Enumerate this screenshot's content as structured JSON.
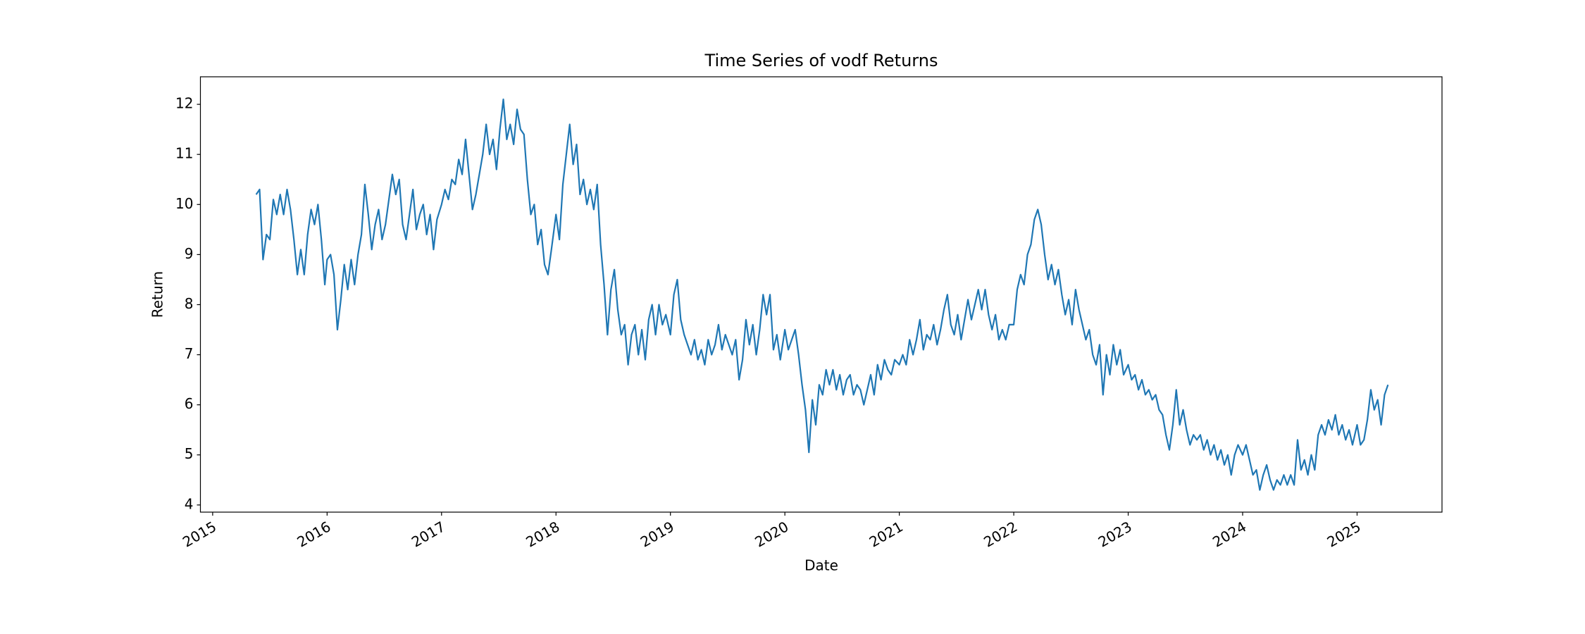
{
  "chart_data": {
    "type": "line",
    "title": "Time Series of vodf Returns",
    "xlabel": "Date",
    "ylabel": "Return",
    "color": "#1f77b4",
    "grid": false,
    "xlim": [
      2014.893,
      2025.742
    ],
    "xticks": [
      2015,
      2016,
      2017,
      2018,
      2019,
      2020,
      2021,
      2022,
      2023,
      2024,
      2025
    ],
    "ylim": [
      3.857,
      12.55
    ],
    "yticks": [
      4,
      5,
      6,
      7,
      8,
      9,
      10,
      11,
      12
    ],
    "x": [
      2015.38,
      2015.41,
      2015.44,
      2015.47,
      2015.5,
      2015.53,
      2015.56,
      2015.59,
      2015.62,
      2015.65,
      2015.68,
      2015.71,
      2015.74,
      2015.77,
      2015.8,
      2015.83,
      2015.86,
      2015.89,
      2015.92,
      2015.95,
      2015.98,
      2016,
      2016.03,
      2016.06,
      2016.09,
      2016.12,
      2016.15,
      2016.18,
      2016.21,
      2016.24,
      2016.27,
      2016.3,
      2016.33,
      2016.36,
      2016.39,
      2016.42,
      2016.45,
      2016.48,
      2016.51,
      2016.54,
      2016.57,
      2016.6,
      2016.63,
      2016.66,
      2016.69,
      2016.72,
      2016.75,
      2016.78,
      2016.81,
      2016.84,
      2016.87,
      2016.9,
      2016.93,
      2016.96,
      2017,
      2017.03,
      2017.06,
      2017.09,
      2017.12,
      2017.15,
      2017.18,
      2017.21,
      2017.24,
      2017.27,
      2017.3,
      2017.33,
      2017.36,
      2017.39,
      2017.42,
      2017.45,
      2017.48,
      2017.51,
      2017.54,
      2017.57,
      2017.6,
      2017.63,
      2017.66,
      2017.69,
      2017.72,
      2017.75,
      2017.78,
      2017.81,
      2017.84,
      2017.87,
      2017.9,
      2017.93,
      2017.96,
      2018,
      2018.03,
      2018.06,
      2018.09,
      2018.12,
      2018.15,
      2018.18,
      2018.21,
      2018.24,
      2018.27,
      2018.3,
      2018.33,
      2018.36,
      2018.39,
      2018.42,
      2018.45,
      2018.48,
      2018.51,
      2018.54,
      2018.57,
      2018.6,
      2018.63,
      2018.66,
      2018.69,
      2018.72,
      2018.75,
      2018.78,
      2018.81,
      2018.84,
      2018.87,
      2018.9,
      2018.93,
      2018.96,
      2019,
      2019.03,
      2019.06,
      2019.09,
      2019.12,
      2019.15,
      2019.18,
      2019.21,
      2019.24,
      2019.27,
      2019.3,
      2019.33,
      2019.36,
      2019.39,
      2019.42,
      2019.45,
      2019.48,
      2019.51,
      2019.54,
      2019.57,
      2019.6,
      2019.63,
      2019.66,
      2019.69,
      2019.72,
      2019.75,
      2019.78,
      2019.81,
      2019.84,
      2019.87,
      2019.9,
      2019.93,
      2019.96,
      2020,
      2020.03,
      2020.06,
      2020.09,
      2020.12,
      2020.15,
      2020.18,
      2020.21,
      2020.24,
      2020.27,
      2020.3,
      2020.33,
      2020.36,
      2020.39,
      2020.42,
      2020.45,
      2020.48,
      2020.51,
      2020.54,
      2020.57,
      2020.6,
      2020.63,
      2020.66,
      2020.69,
      2020.72,
      2020.75,
      2020.78,
      2020.81,
      2020.84,
      2020.87,
      2020.9,
      2020.93,
      2020.96,
      2021,
      2021.03,
      2021.06,
      2021.09,
      2021.12,
      2021.15,
      2021.18,
      2021.21,
      2021.24,
      2021.27,
      2021.3,
      2021.33,
      2021.36,
      2021.39,
      2021.42,
      2021.45,
      2021.48,
      2021.51,
      2021.54,
      2021.57,
      2021.6,
      2021.63,
      2021.66,
      2021.69,
      2021.72,
      2021.75,
      2021.78,
      2021.81,
      2021.84,
      2021.87,
      2021.9,
      2021.93,
      2021.96,
      2022,
      2022.03,
      2022.06,
      2022.09,
      2022.12,
      2022.15,
      2022.18,
      2022.21,
      2022.24,
      2022.27,
      2022.3,
      2022.33,
      2022.36,
      2022.39,
      2022.42,
      2022.45,
      2022.48,
      2022.51,
      2022.54,
      2022.57,
      2022.6,
      2022.63,
      2022.66,
      2022.69,
      2022.72,
      2022.75,
      2022.78,
      2022.81,
      2022.84,
      2022.87,
      2022.9,
      2022.93,
      2022.96,
      2023,
      2023.03,
      2023.06,
      2023.09,
      2023.12,
      2023.15,
      2023.18,
      2023.21,
      2023.24,
      2023.27,
      2023.3,
      2023.33,
      2023.36,
      2023.39,
      2023.42,
      2023.45,
      2023.48,
      2023.51,
      2023.54,
      2023.57,
      2023.6,
      2023.63,
      2023.66,
      2023.69,
      2023.72,
      2023.75,
      2023.78,
      2023.81,
      2023.84,
      2023.87,
      2023.9,
      2023.93,
      2023.96,
      2024,
      2024.03,
      2024.06,
      2024.09,
      2024.12,
      2024.15,
      2024.18,
      2024.21,
      2024.24,
      2024.27,
      2024.3,
      2024.33,
      2024.36,
      2024.39,
      2024.42,
      2024.45,
      2024.48,
      2024.51,
      2024.54,
      2024.57,
      2024.6,
      2024.63,
      2024.66,
      2024.69,
      2024.72,
      2024.75,
      2024.78,
      2024.81,
      2024.84,
      2024.87,
      2024.9,
      2024.93,
      2024.96,
      2025,
      2025.03,
      2025.06,
      2025.09,
      2025.12,
      2025.15,
      2025.18,
      2025.21,
      2025.24,
      2025.27
    ],
    "values": [
      10.2,
      10.3,
      8.9,
      9.4,
      9.3,
      10.1,
      9.8,
      10.2,
      9.8,
      10.3,
      9.9,
      9.3,
      8.6,
      9.1,
      8.6,
      9.4,
      9.9,
      9.6,
      10.0,
      9.3,
      8.4,
      8.9,
      9.0,
      8.6,
      7.5,
      8.1,
      8.8,
      8.3,
      8.9,
      8.4,
      9.0,
      9.4,
      10.4,
      9.8,
      9.1,
      9.6,
      9.9,
      9.3,
      9.6,
      10.1,
      10.6,
      10.2,
      10.5,
      9.6,
      9.3,
      9.8,
      10.3,
      9.5,
      9.8,
      10.0,
      9.4,
      9.8,
      9.1,
      9.7,
      10.0,
      10.3,
      10.1,
      10.5,
      10.4,
      10.9,
      10.6,
      11.3,
      10.6,
      9.9,
      10.2,
      10.6,
      11.0,
      11.6,
      11.0,
      11.3,
      10.7,
      11.5,
      12.1,
      11.3,
      11.6,
      11.2,
      11.9,
      11.5,
      11.4,
      10.5,
      9.8,
      10.0,
      9.2,
      9.5,
      8.8,
      8.6,
      9.1,
      9.8,
      9.3,
      10.4,
      11.0,
      11.6,
      10.8,
      11.2,
      10.2,
      10.5,
      10.0,
      10.3,
      9.9,
      10.4,
      9.2,
      8.4,
      7.4,
      8.3,
      8.7,
      7.9,
      7.4,
      7.6,
      6.8,
      7.4,
      7.6,
      7.0,
      7.5,
      6.9,
      7.7,
      8.0,
      7.4,
      8.0,
      7.6,
      7.8,
      7.4,
      8.2,
      8.5,
      7.7,
      7.4,
      7.2,
      7.0,
      7.3,
      6.9,
      7.1,
      6.8,
      7.3,
      7.0,
      7.2,
      7.6,
      7.1,
      7.4,
      7.2,
      7.0,
      7.3,
      6.5,
      6.9,
      7.7,
      7.2,
      7.6,
      7.0,
      7.5,
      8.2,
      7.8,
      8.2,
      7.1,
      7.4,
      6.9,
      7.5,
      7.1,
      7.3,
      7.5,
      7.0,
      6.4,
      5.9,
      5.05,
      6.1,
      5.6,
      6.4,
      6.2,
      6.7,
      6.4,
      6.7,
      6.3,
      6.6,
      6.2,
      6.5,
      6.6,
      6.2,
      6.4,
      6.3,
      6.0,
      6.3,
      6.6,
      6.2,
      6.8,
      6.5,
      6.9,
      6.7,
      6.6,
      6.9,
      6.8,
      7.0,
      6.8,
      7.3,
      7.0,
      7.3,
      7.7,
      7.1,
      7.4,
      7.3,
      7.6,
      7.2,
      7.5,
      7.9,
      8.2,
      7.6,
      7.4,
      7.8,
      7.3,
      7.7,
      8.1,
      7.7,
      8.0,
      8.3,
      7.9,
      8.3,
      7.8,
      7.5,
      7.8,
      7.3,
      7.5,
      7.3,
      7.6,
      7.6,
      8.3,
      8.6,
      8.4,
      9.0,
      9.2,
      9.7,
      9.9,
      9.6,
      9.0,
      8.5,
      8.8,
      8.4,
      8.7,
      8.2,
      7.8,
      8.1,
      7.6,
      8.3,
      7.9,
      7.6,
      7.3,
      7.5,
      7.0,
      6.8,
      7.2,
      6.2,
      7.0,
      6.6,
      7.2,
      6.8,
      7.1,
      6.6,
      6.8,
      6.5,
      6.6,
      6.3,
      6.5,
      6.2,
      6.3,
      6.1,
      6.2,
      5.9,
      5.8,
      5.4,
      5.1,
      5.6,
      6.3,
      5.6,
      5.9,
      5.5,
      5.2,
      5.4,
      5.3,
      5.4,
      5.1,
      5.3,
      5.0,
      5.2,
      4.9,
      5.1,
      4.8,
      5.0,
      4.6,
      5.0,
      5.2,
      5.0,
      5.2,
      4.9,
      4.6,
      4.7,
      4.3,
      4.6,
      4.8,
      4.5,
      4.3,
      4.5,
      4.4,
      4.6,
      4.4,
      4.6,
      4.4,
      5.3,
      4.7,
      4.9,
      4.6,
      5.0,
      4.7,
      5.4,
      5.6,
      5.4,
      5.7,
      5.5,
      5.8,
      5.4,
      5.6,
      5.3,
      5.5,
      5.2,
      5.6,
      5.2,
      5.3,
      5.7,
      6.3,
      5.9,
      6.1,
      5.6,
      6.2,
      6.4
    ]
  }
}
